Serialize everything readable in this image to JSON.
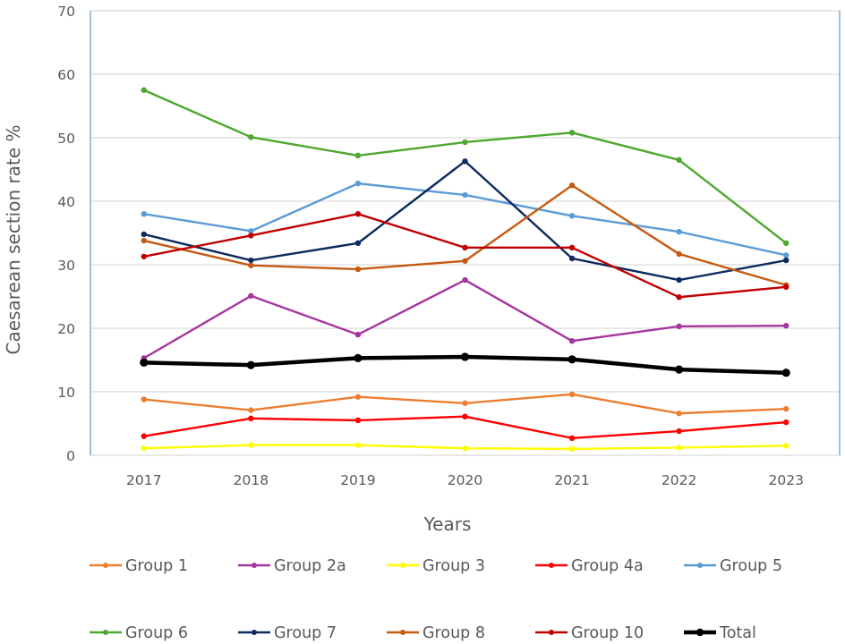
{
  "chart_data": {
    "type": "line",
    "title": "",
    "xlabel": "Years",
    "ylabel": "Caesarean section rate %",
    "categories": [
      "2017",
      "2018",
      "2019",
      "2020",
      "2021",
      "2022",
      "2023"
    ],
    "ylim": [
      0,
      70
    ],
    "yticks": [
      0,
      10,
      20,
      30,
      40,
      50,
      60,
      70
    ],
    "grid": true,
    "legend_position": "bottom",
    "series": [
      {
        "name": "Group 1",
        "color": "#ED7D31",
        "values": [
          8.8,
          7.1,
          9.2,
          8.2,
          9.6,
          6.6,
          7.3
        ]
      },
      {
        "name": "Group 2a",
        "color": "#A5359E",
        "values": [
          15.3,
          25.1,
          19.0,
          27.6,
          18.0,
          20.3,
          20.4
        ]
      },
      {
        "name": "Group 3",
        "color": "#FFFF00",
        "values": [
          1.1,
          1.6,
          1.6,
          1.1,
          1.0,
          1.2,
          1.5
        ]
      },
      {
        "name": "Group 4a",
        "color": "#FF0000",
        "values": [
          3.0,
          5.8,
          5.5,
          6.1,
          2.7,
          3.8,
          5.2
        ]
      },
      {
        "name": "Group 5",
        "color": "#5B9BD5",
        "values": [
          38.0,
          35.3,
          42.8,
          41.0,
          37.7,
          35.2,
          31.5
        ]
      },
      {
        "name": "Group 6",
        "color": "#4EA72E",
        "values": [
          57.5,
          50.1,
          47.2,
          49.3,
          50.8,
          46.5,
          33.4
        ]
      },
      {
        "name": "Group 7",
        "color": "#0E2A5E",
        "values": [
          34.8,
          30.7,
          33.4,
          46.3,
          31.0,
          27.6,
          30.7
        ]
      },
      {
        "name": "Group 8",
        "color": "#C55A11",
        "values": [
          33.8,
          29.9,
          29.3,
          30.6,
          42.5,
          31.7,
          26.8
        ]
      },
      {
        "name": "Group 10",
        "color": "#C00000",
        "values": [
          31.3,
          34.6,
          38.0,
          32.7,
          32.7,
          24.9,
          26.5
        ]
      },
      {
        "name": "Total",
        "color": "#000000",
        "values": [
          14.6,
          14.2,
          15.3,
          15.5,
          15.1,
          13.5,
          13.0
        ],
        "bold": true
      }
    ]
  }
}
